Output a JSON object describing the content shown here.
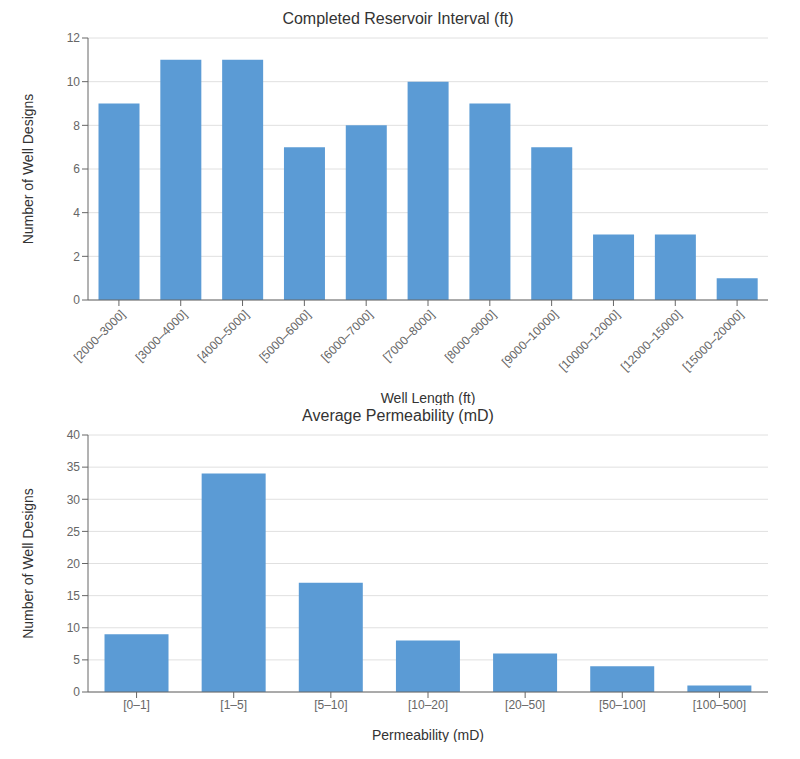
{
  "chart_data": [
    {
      "type": "bar",
      "title": "Completed Reservoir Interval (ft)",
      "categories": [
        "[2000–3000]",
        "[3000–4000]",
        "[4000–5000]",
        "[5000–6000]",
        "[6000–7000]",
        "[7000–8000]",
        "[8000–9000]",
        "[9000–10000]",
        "[10000–12000]",
        "[12000–15000]",
        "[15000–20000]"
      ],
      "values": [
        9,
        11,
        11,
        7,
        8,
        10,
        9,
        7,
        3,
        3,
        1
      ],
      "xlabel": "Well Length (ft)",
      "ylabel": "Number of Well Designs",
      "ylim": [
        0,
        12
      ],
      "yticks": [
        0,
        2,
        4,
        6,
        8,
        10,
        12
      ],
      "color": "#5B9BD5",
      "grid": true
    },
    {
      "type": "bar",
      "title": "Average Permeability (mD)",
      "categories": [
        "[0–1]",
        "[1–5]",
        "[5–10]",
        "[10–20]",
        "[20–50]",
        "[50–100]",
        "[100–500]"
      ],
      "values": [
        9,
        34,
        17,
        8,
        6,
        4,
        1
      ],
      "xlabel": "Permeability (mD)",
      "ylabel": "Number of Well Designs",
      "ylim": [
        0,
        40
      ],
      "yticks": [
        0,
        5,
        10,
        15,
        20,
        25,
        30,
        35,
        40
      ],
      "color": "#5B9BD5",
      "grid": true
    }
  ]
}
